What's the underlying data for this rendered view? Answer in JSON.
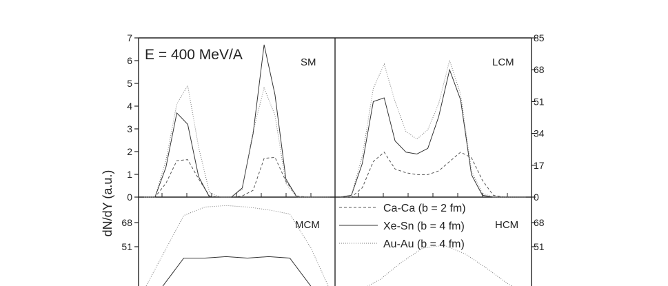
{
  "figure": {
    "energy_label": "E = 400 MeV/A",
    "ylabel": "dN/dY (a.u.)"
  },
  "legend": [
    {
      "label": "Ca-Ca  (b = 2 fm)",
      "style": "dashed",
      "color": "#555555"
    },
    {
      "label": "Xe-Sn  (b = 4 fm)",
      "style": "solid",
      "color": "#333333"
    },
    {
      "label": "Au-Au  (b = 4 fm)",
      "style": "dotted",
      "color": "#777777"
    }
  ],
  "chart_data": [
    {
      "type": "line",
      "panel": "SM",
      "ylim": [
        0,
        7
      ],
      "yticks": [
        "0",
        "1",
        "2",
        "3",
        "4",
        "5",
        "6",
        "7"
      ],
      "x": [
        0,
        1,
        2,
        3,
        4,
        5,
        6,
        7,
        8,
        9,
        10,
        11,
        12,
        13,
        14,
        15,
        16,
        17
      ],
      "series": [
        {
          "name": "Ca-Ca  (b = 2 fm)",
          "values": [
            0,
            0,
            0.6,
            1.6,
            1.65,
            0.8,
            0.05,
            0,
            0,
            0.05,
            0.3,
            1.7,
            1.75,
            0.7,
            0.05,
            0,
            0,
            0
          ]
        },
        {
          "name": "Xe-Sn  (b = 4 fm)",
          "values": [
            0,
            0,
            1.3,
            3.7,
            3.2,
            0.9,
            0,
            0,
            0,
            0.4,
            2.8,
            6.7,
            4.5,
            0.8,
            0,
            0,
            0,
            0
          ]
        },
        {
          "name": "Au-Au  (b = 4 fm)",
          "values": [
            0,
            0,
            1.6,
            4.1,
            4.9,
            2.2,
            0.2,
            0,
            0,
            0.35,
            2.9,
            4.8,
            3.6,
            0.6,
            0,
            0,
            0,
            0
          ]
        }
      ]
    },
    {
      "type": "line",
      "panel": "LCM",
      "ylim": [
        0,
        85
      ],
      "yticks": [
        "0",
        "17",
        "34",
        "51",
        "68",
        "85"
      ],
      "x": [
        0,
        1,
        2,
        3,
        4,
        5,
        6,
        7,
        8,
        9,
        10,
        11,
        12,
        13,
        14,
        15,
        16,
        17
      ],
      "series": [
        {
          "name": "Ca-Ca  (b = 2 fm)",
          "values": [
            0,
            0,
            5,
            19,
            24,
            15,
            13,
            12,
            12,
            14,
            19,
            24,
            21,
            9,
            1,
            0,
            0,
            0
          ]
        },
        {
          "name": "Xe-Sn  (b = 4 fm)",
          "values": [
            0,
            1,
            18,
            51,
            53,
            30,
            24,
            23,
            26,
            43,
            68,
            52,
            12,
            1,
            0,
            0,
            0,
            0
          ]
        },
        {
          "name": "Au-Au  (b = 4 fm)",
          "values": [
            0,
            1,
            22,
            58,
            71,
            51,
            35,
            31,
            36,
            50,
            73,
            55,
            14,
            2,
            0,
            0,
            0,
            0
          ]
        }
      ]
    },
    {
      "type": "line",
      "panel": "MCM",
      "ylim": [
        17,
        85
      ],
      "yticks": [
        "51",
        "68"
      ],
      "x": [
        0,
        1,
        2,
        3,
        4,
        5,
        6,
        7,
        8,
        9
      ],
      "series": [
        {
          "name": "Xe-Sn  (b = 4 fm)",
          "values": [
            17,
            23,
            43,
            43,
            44,
            43,
            44,
            43,
            23,
            17
          ]
        },
        {
          "name": "Au-Au  (b = 4 fm)",
          "values": [
            17,
            45,
            73,
            79,
            80,
            79,
            77,
            74,
            50,
            17
          ]
        }
      ]
    },
    {
      "type": "line",
      "panel": "HCM",
      "ylim": [
        17,
        85
      ],
      "yticks": [
        "51",
        "68"
      ],
      "x": [
        0,
        1,
        2,
        3,
        4,
        5,
        6,
        7,
        8,
        9
      ],
      "series": [
        {
          "name": "Au-Au  (b = 4 fm)",
          "values": [
            17,
            20,
            28,
            40,
            50,
            52,
            46,
            36,
            25,
            17
          ]
        }
      ]
    }
  ]
}
